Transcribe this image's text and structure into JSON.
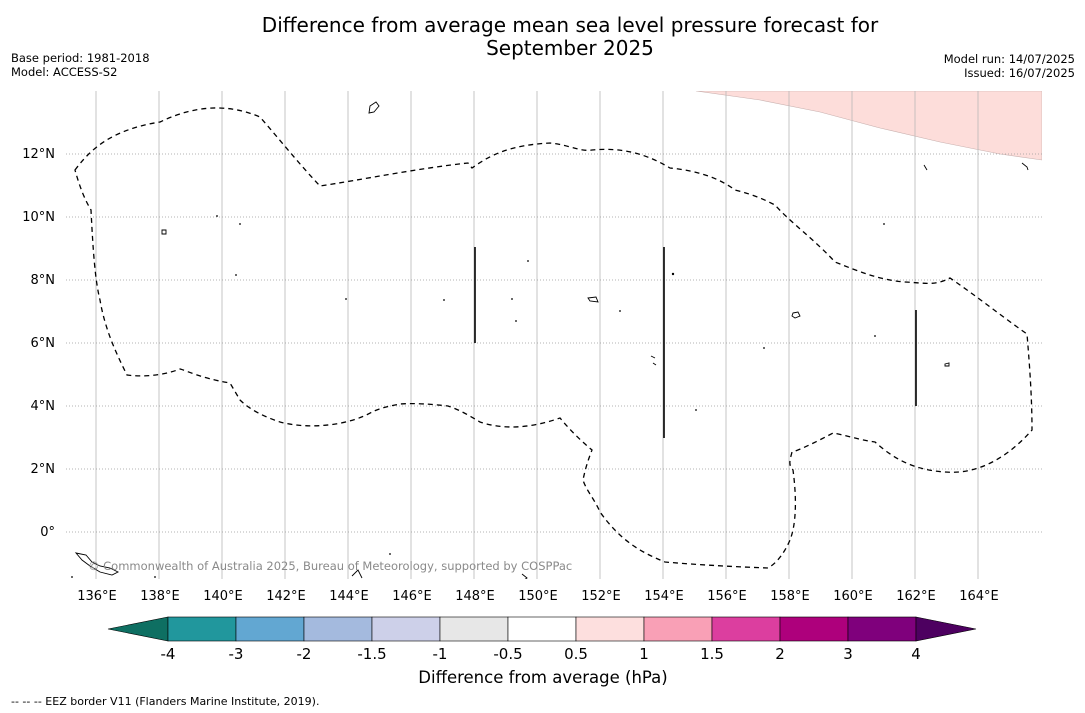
{
  "header": {
    "title_line1": "Difference from average mean sea level pressure forecast for",
    "title_line2": "September 2025",
    "base_period": "Base period: 1981-2018",
    "model": "Model: ACCESS-S2",
    "model_run": "Model run: 14/07/2025",
    "issued": "Issued: 16/07/2025"
  },
  "map": {
    "lon_ticks": [
      "136°E",
      "138°E",
      "140°E",
      "142°E",
      "144°E",
      "146°E",
      "148°E",
      "150°E",
      "152°E",
      "154°E",
      "156°E",
      "158°E",
      "160°E",
      "162°E",
      "164°E"
    ],
    "lat_ticks": [
      "12°N",
      "10°N",
      "8°N",
      "6°N",
      "4°N",
      "2°N",
      "0°"
    ],
    "copyright": "© Commonwealth of Australia 2025, Bureau of Meteorology, supported by COSPPac",
    "anomaly_fill_color": "#fdddda",
    "eez_line_color": "#000000"
  },
  "colorbar": {
    "title": "Difference from average (hPa)",
    "tick_labels": [
      "-4",
      "-3",
      "-2",
      "-1.5",
      "-1",
      "-0.5",
      "0.5",
      "1",
      "1.5",
      "2",
      "3",
      "4"
    ],
    "colors": [
      "#0e6f62",
      "#21979d",
      "#62a7d2",
      "#a4bade",
      "#cdd0e9",
      "#e7e7e7",
      "#ffffff",
      "#fddfde",
      "#f9a0b6",
      "#dc3e9f",
      "#ae007c",
      "#7f007c",
      "#4d0060"
    ]
  },
  "footnote": "--  --  -- EEZ border V11 (Flanders Marine Institute, 2019)."
}
